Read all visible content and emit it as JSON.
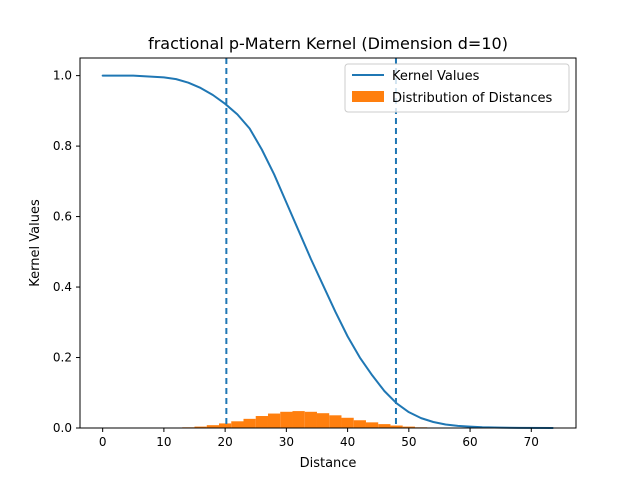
{
  "chart_data": {
    "type": "line",
    "title": "fractional p-Matern Kernel (Dimension d=10)",
    "xlabel": "Distance",
    "ylabel": "Kernel Values",
    "xlim": [
      -3.7,
      77.3
    ],
    "ylim": [
      0.0,
      1.05
    ],
    "grid": false,
    "legend_position": "top-right",
    "x_ticks": [
      0,
      10,
      20,
      30,
      40,
      50,
      60,
      70
    ],
    "y_ticks": [
      0.0,
      0.2,
      0.4,
      0.6,
      0.8,
      1.0
    ],
    "x_tick_labels": [
      "0",
      "10",
      "20",
      "30",
      "40",
      "50",
      "60",
      "70"
    ],
    "y_tick_labels": [
      "0.0",
      "0.2",
      "0.4",
      "0.6",
      "0.8",
      "1.0"
    ],
    "series": [
      {
        "name": "Kernel Values",
        "kind": "line",
        "color": "#1f77b4",
        "x": [
          0,
          5,
          10,
          12,
          14,
          16,
          18,
          20,
          22,
          24,
          26,
          28,
          30,
          32,
          34,
          36,
          38,
          40,
          42,
          44,
          46,
          48,
          50,
          52,
          54,
          56,
          58,
          60,
          62,
          65,
          68,
          73.5
        ],
        "y": [
          1.0,
          1.0,
          0.995,
          0.99,
          0.98,
          0.965,
          0.945,
          0.92,
          0.89,
          0.85,
          0.79,
          0.72,
          0.64,
          0.56,
          0.48,
          0.405,
          0.33,
          0.26,
          0.2,
          0.15,
          0.105,
          0.07,
          0.045,
          0.028,
          0.017,
          0.01,
          0.006,
          0.004,
          0.002,
          0.001,
          0.0005,
          0.0
        ]
      },
      {
        "name": "Distribution of Distances",
        "kind": "histogram",
        "color": "#ff7f0e",
        "x": [
          12,
          14,
          16,
          18,
          20,
          22,
          24,
          26,
          28,
          30,
          32,
          34,
          36,
          38,
          40,
          42,
          44,
          46,
          48,
          50,
          52,
          54,
          56
        ],
        "y": [
          0.001,
          0.002,
          0.004,
          0.008,
          0.013,
          0.019,
          0.026,
          0.034,
          0.041,
          0.046,
          0.048,
          0.046,
          0.042,
          0.036,
          0.029,
          0.022,
          0.016,
          0.011,
          0.007,
          0.004,
          0.002,
          0.001,
          0.0005
        ]
      }
    ],
    "vlines": [
      {
        "x": 20.2,
        "style": "dashed",
        "color": "#1f77b4"
      },
      {
        "x": 47.9,
        "style": "dashed",
        "color": "#1f77b4"
      }
    ]
  }
}
